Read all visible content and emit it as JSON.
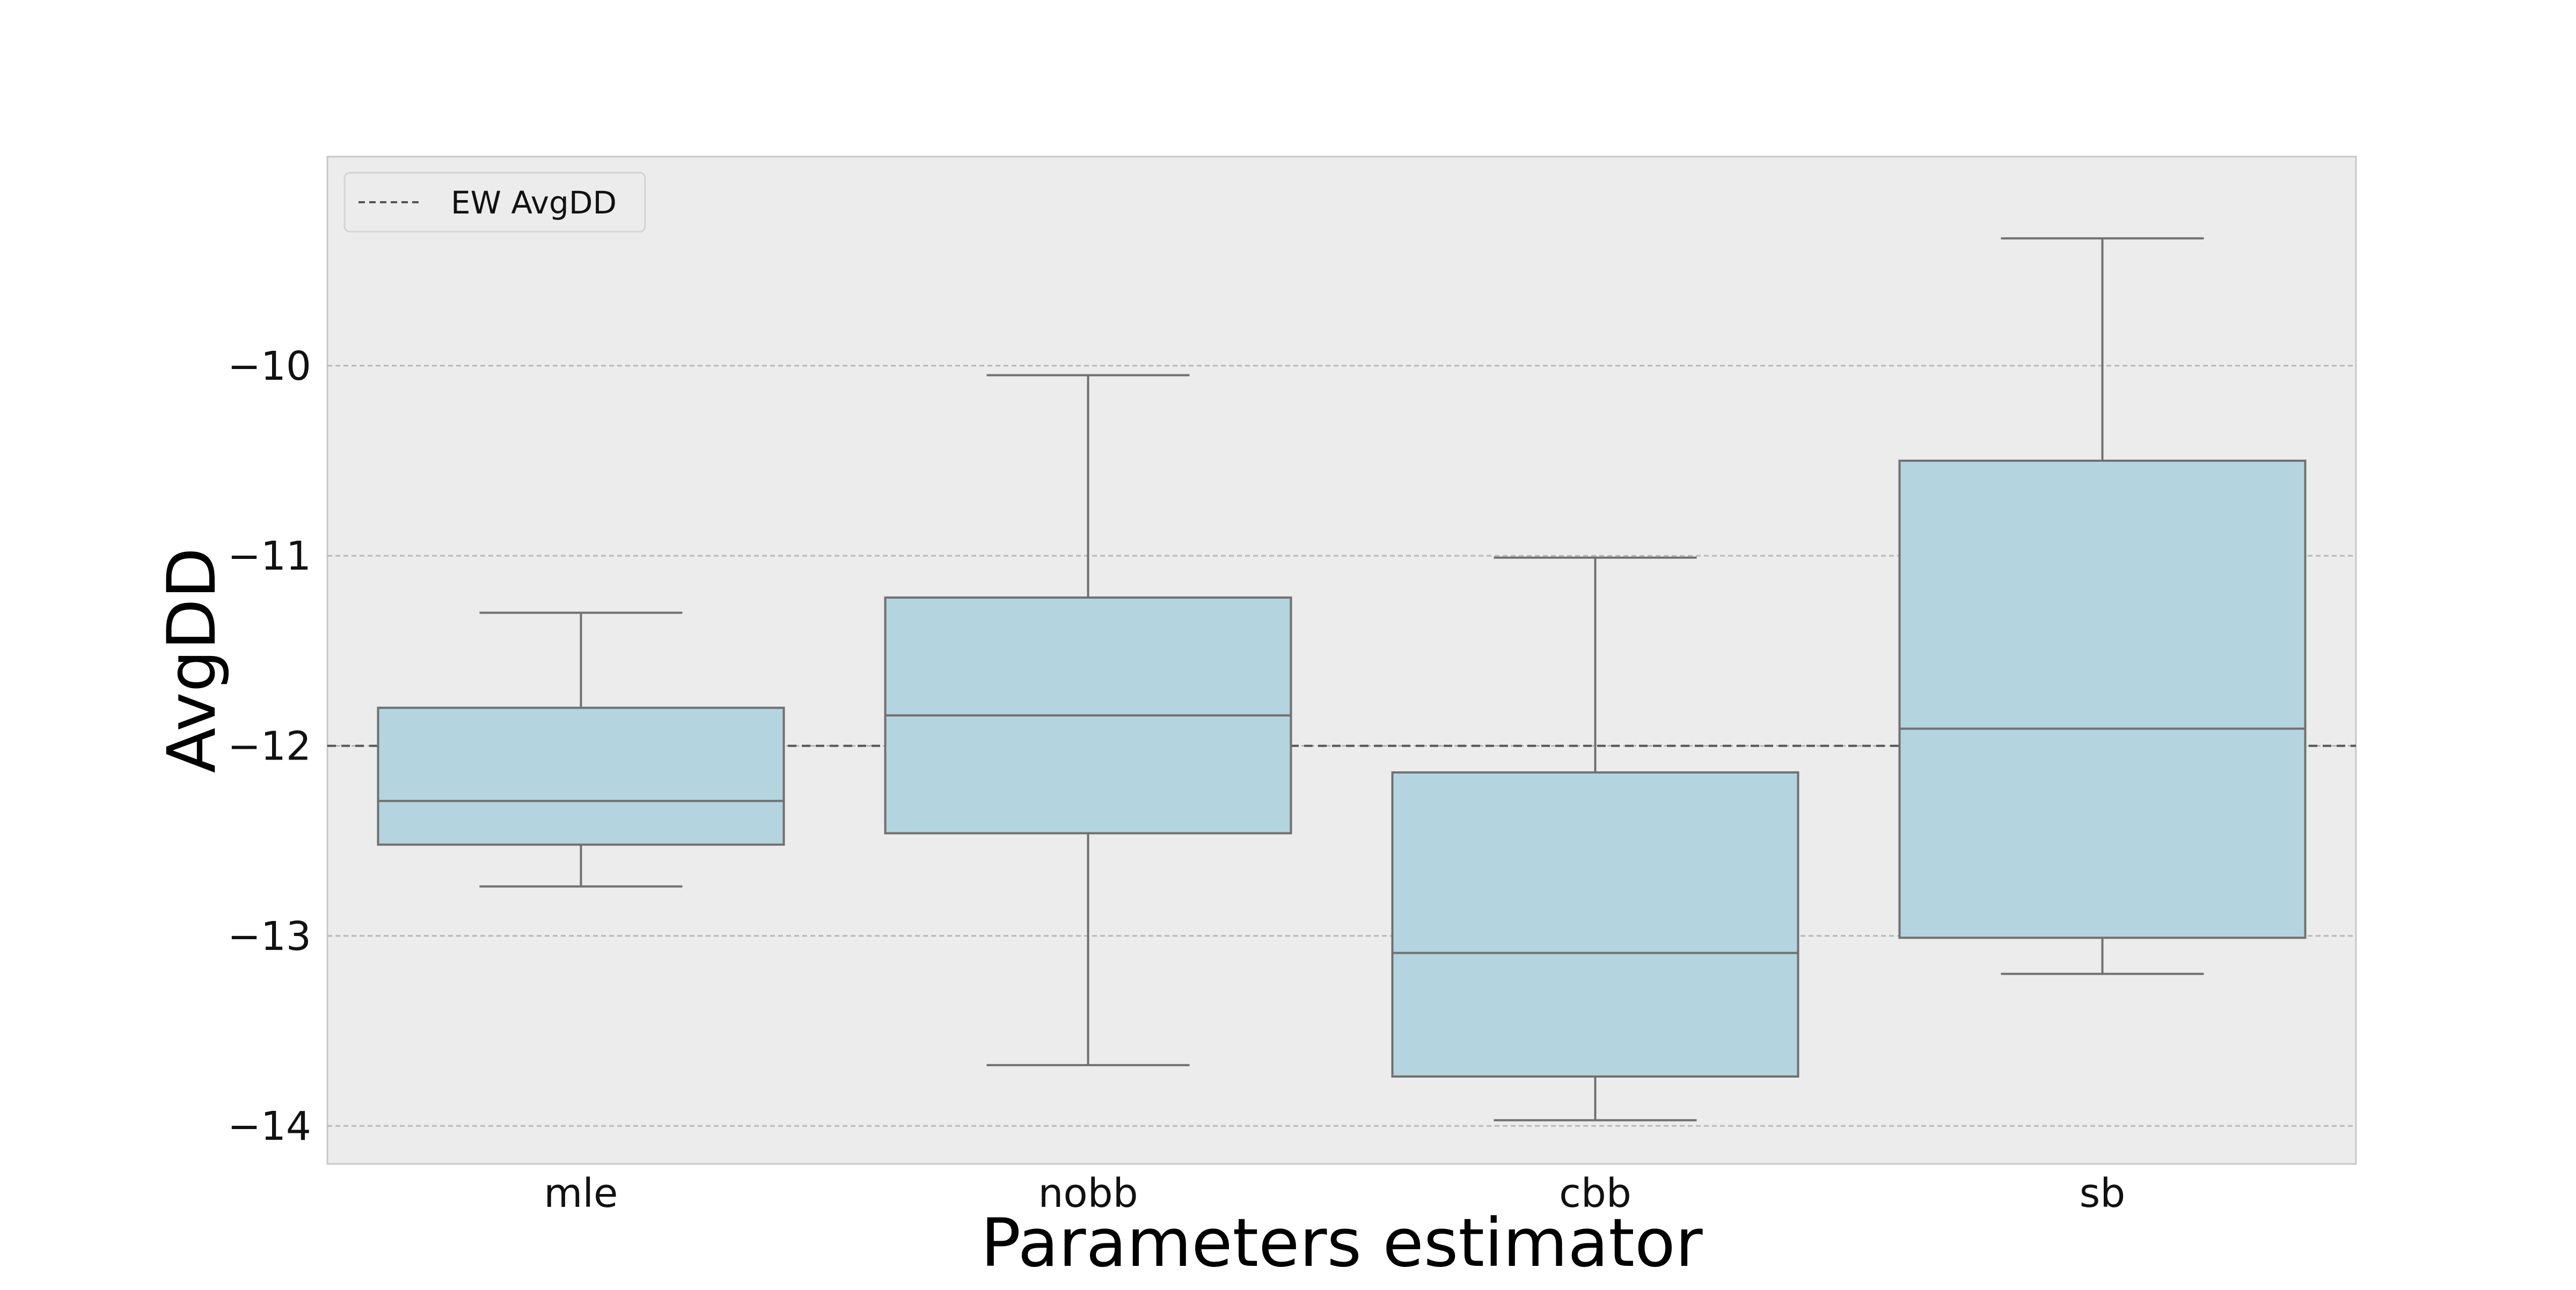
{
  "chart_data": {
    "type": "box",
    "title": "",
    "xlabel": "Parameters estimator",
    "ylabel": "AvgDD",
    "ylim": [
      -14.2,
      -8.9
    ],
    "yticks": [
      -10,
      -11,
      -12,
      -13,
      -14
    ],
    "ytick_labels": [
      "−10",
      "−11",
      "−12",
      "−13",
      "−14"
    ],
    "grid": true,
    "legend": {
      "position": "top-left",
      "entries": [
        "EW AvgDD"
      ]
    },
    "reference_line": {
      "name": "EW AvgDD",
      "value": -12.0,
      "style": "dashed"
    },
    "categories": [
      "mle",
      "nobb",
      "cbb",
      "sb"
    ],
    "boxes": [
      {
        "category": "mle",
        "whisker_low": -12.74,
        "q1": -12.52,
        "median": -12.29,
        "q3": -11.8,
        "whisker_high": -11.3
      },
      {
        "category": "nobb",
        "whisker_low": -13.68,
        "q1": -12.46,
        "median": -11.84,
        "q3": -11.22,
        "whisker_high": -10.05
      },
      {
        "category": "cbb",
        "whisker_low": -13.97,
        "q1": -13.74,
        "median": -13.09,
        "q3": -12.14,
        "whisker_high": -11.01
      },
      {
        "category": "sb",
        "whisker_low": -13.2,
        "q1": -13.01,
        "median": -11.91,
        "q3": -10.5,
        "whisker_high": -9.33
      }
    ],
    "colors": {
      "box_fill": "#b4d4df",
      "box_edge": "#707070",
      "plot_bg": "#ececec",
      "grid": "#b8b8b8",
      "reference": "#555555"
    }
  }
}
